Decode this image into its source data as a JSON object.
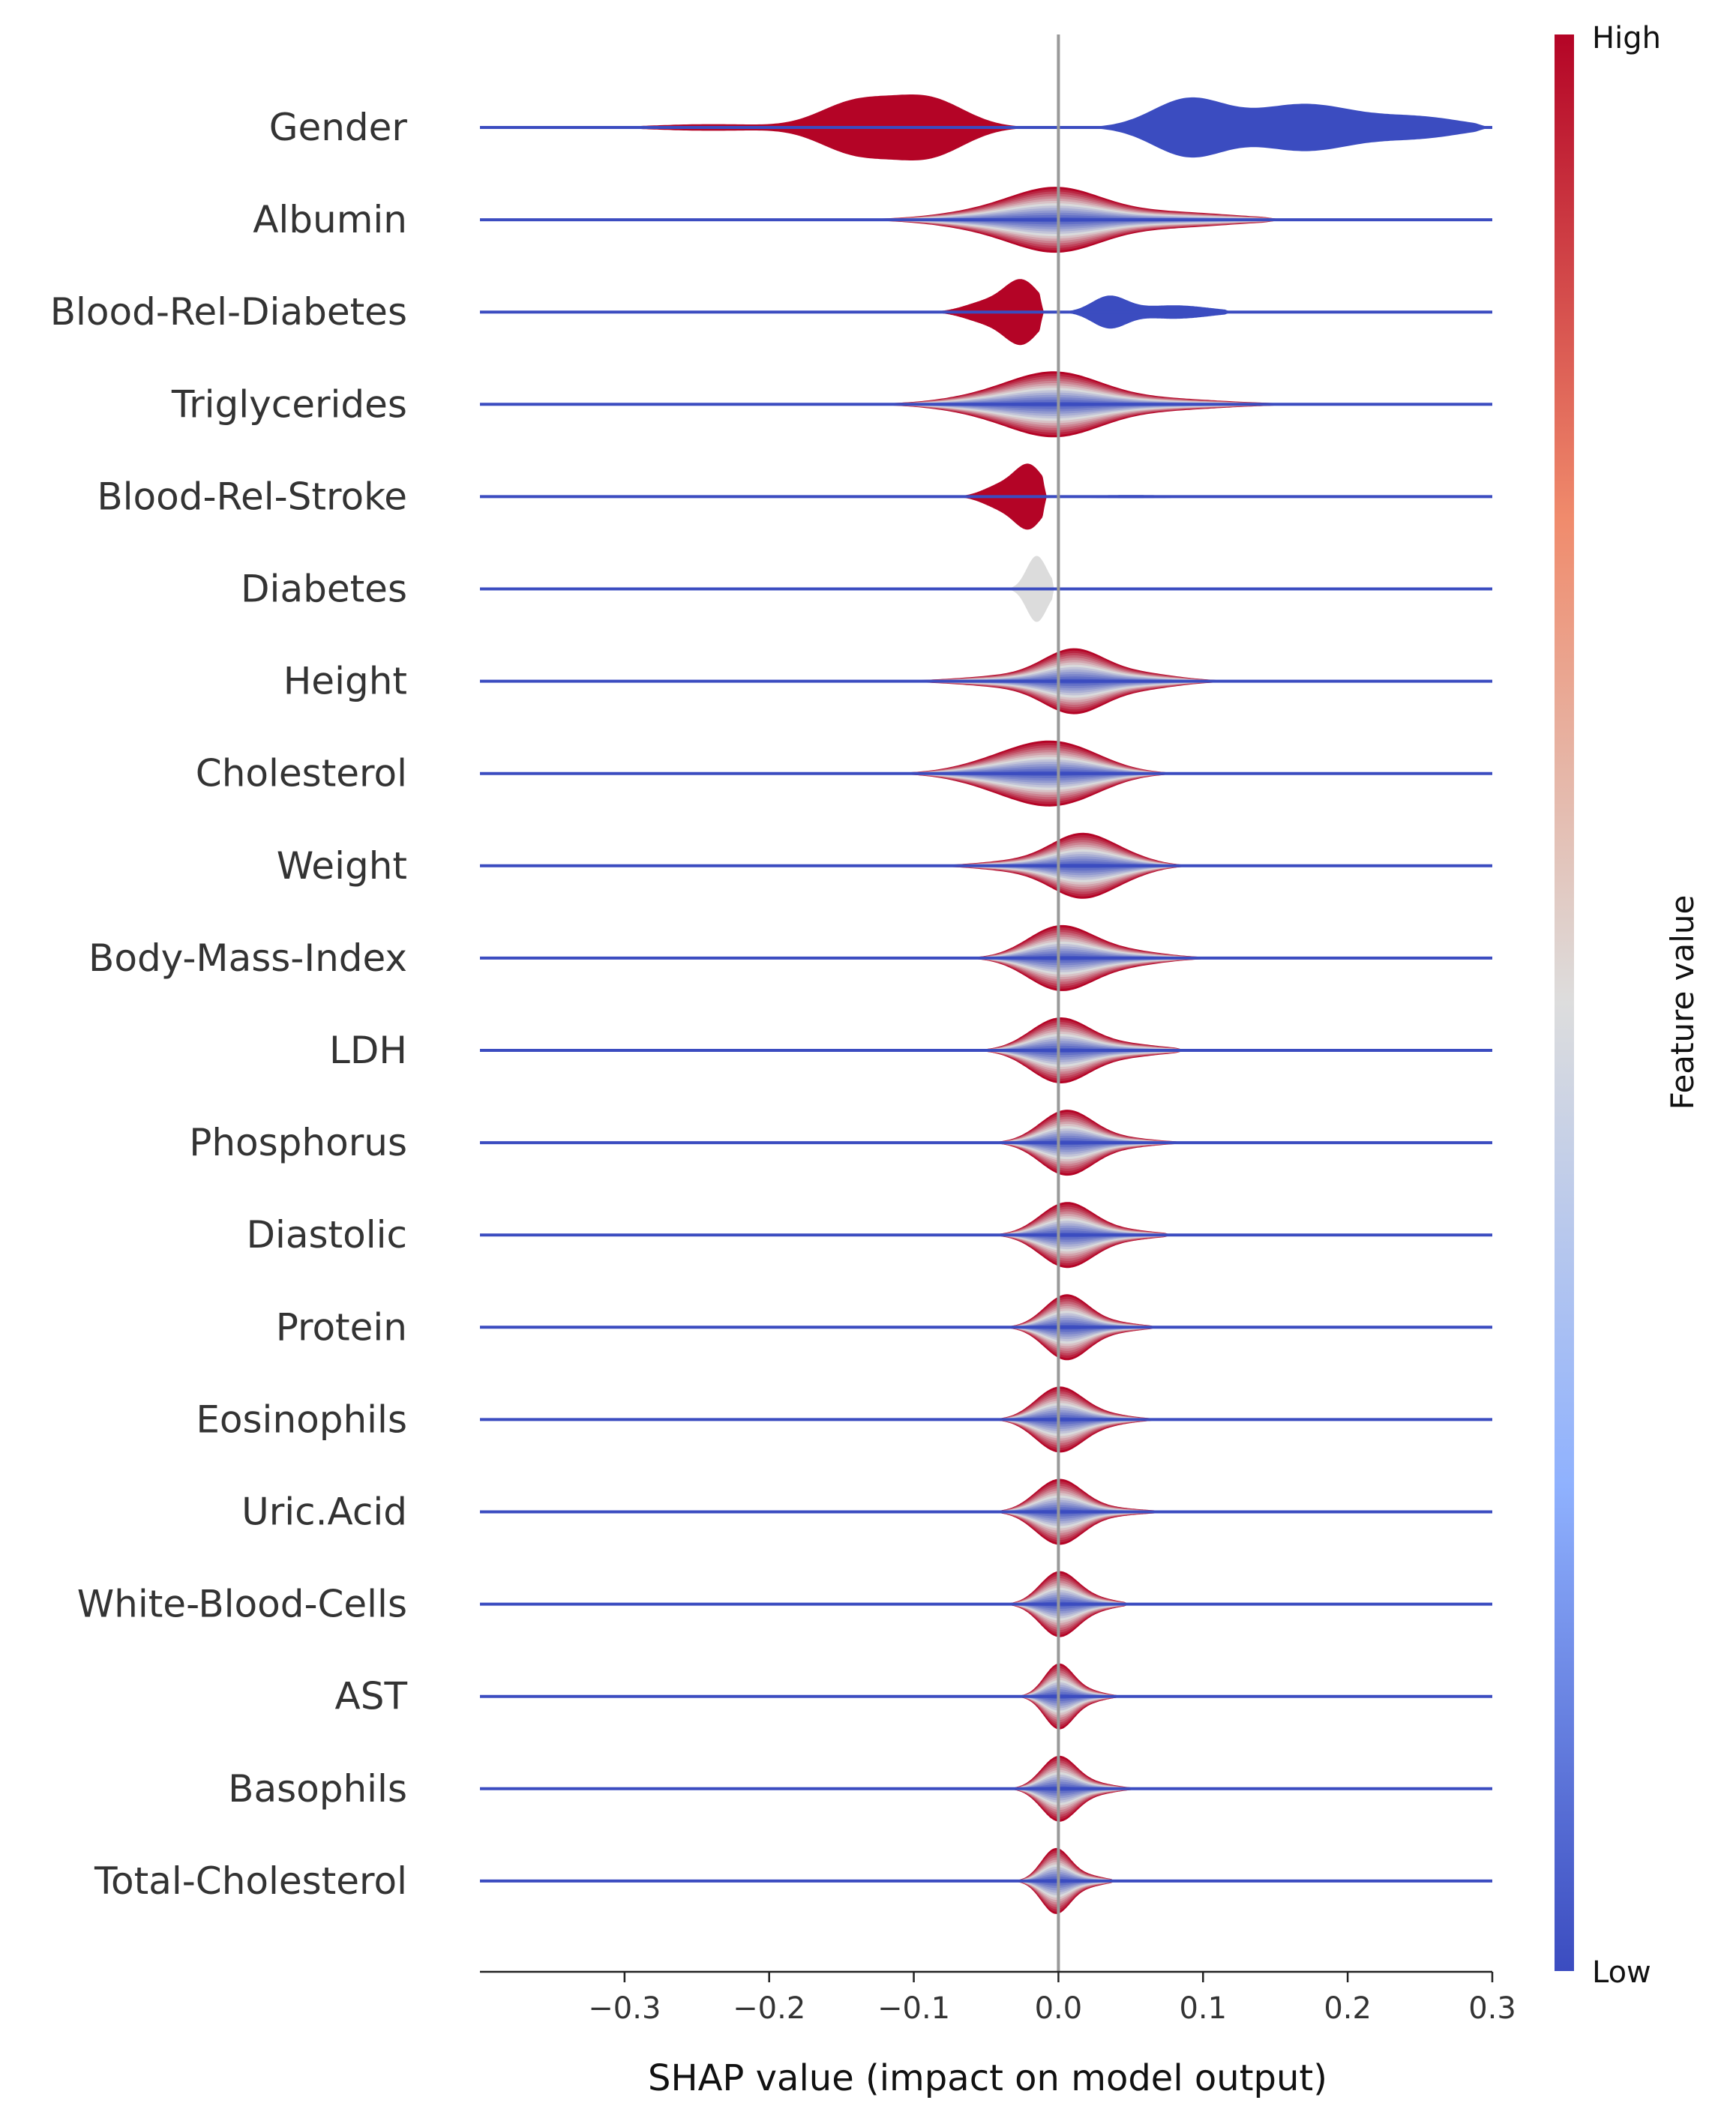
{
  "chart_data": {
    "type": "violin",
    "xlabel": "SHAP value (impact on model output)",
    "ylabel": "",
    "title": "",
    "xlim": [
      -0.4,
      0.3
    ],
    "x_ticks": [
      {
        "value": -0.3,
        "label": "−0.3"
      },
      {
        "value": -0.2,
        "label": "−0.2"
      },
      {
        "value": -0.1,
        "label": "−0.1"
      },
      {
        "value": 0.0,
        "label": "0.0"
      },
      {
        "value": 0.1,
        "label": "0.1"
      },
      {
        "value": 0.2,
        "label": "0.2"
      },
      {
        "value": 0.3,
        "label": "0.3"
      }
    ],
    "colorbar": {
      "label": "Feature value",
      "high_label": "High",
      "low_label": "Low",
      "high_color": "#b40426",
      "mid_color": "#dddddd",
      "low_color": "#3b4cc0"
    },
    "features": [
      {
        "name": "Gender",
        "style": "split",
        "left": {
          "color": "#b40426",
          "peaks": [
            [
              -0.14,
              0.025,
              0.75
            ],
            [
              -0.09,
              0.025,
              0.85
            ],
            [
              -0.24,
              0.04,
              0.1
            ]
          ],
          "min": -0.3,
          "max": -0.002
        },
        "right": {
          "color": "#3b4cc0",
          "peaks": [
            [
              0.09,
              0.025,
              0.85
            ],
            [
              0.17,
              0.035,
              0.7
            ],
            [
              0.25,
              0.03,
              0.3
            ]
          ],
          "min": 0.003,
          "max": 0.3
        }
      },
      {
        "name": "Albumin",
        "style": "gradient",
        "center": 0.025,
        "peaks": [
          [
            0.0,
            0.03,
            0.9
          ],
          [
            -0.04,
            0.04,
            0.35
          ],
          [
            0.07,
            0.05,
            0.3
          ]
        ],
        "min": -0.28,
        "max": 0.16,
        "top": "pos",
        "bottom": "neg"
      },
      {
        "name": "Blood-Rel-Diabetes",
        "style": "split",
        "left": {
          "color": "#b40426",
          "peaks": [
            [
              -0.025,
              0.012,
              0.9
            ],
            [
              -0.05,
              0.015,
              0.3
            ]
          ],
          "min": -0.085,
          "max": -0.01
        },
        "right": {
          "color": "#3b4cc0",
          "peaks": [
            [
              0.035,
              0.012,
              0.45
            ],
            [
              0.08,
              0.025,
              0.2
            ]
          ],
          "min": 0.002,
          "max": 0.12
        }
      },
      {
        "name": "Triglycerides",
        "style": "gradient",
        "center": -0.03,
        "peaks": [
          [
            0.0,
            0.03,
            0.85
          ],
          [
            -0.03,
            0.04,
            0.45
          ],
          [
            0.06,
            0.05,
            0.25
          ]
        ],
        "min": -0.16,
        "max": 0.18,
        "top": "pos",
        "bottom": "pos"
      },
      {
        "name": "Blood-Rel-Stroke",
        "style": "split",
        "left": {
          "color": "#b40426",
          "peaks": [
            [
              -0.02,
              0.01,
              0.95
            ],
            [
              -0.04,
              0.012,
              0.35
            ]
          ],
          "min": -0.08,
          "max": -0.008
        },
        "right": {
          "color": "#3b4cc0",
          "peaks": [
            [
              0.05,
              0.04,
              0.05
            ]
          ],
          "min": 0.002,
          "max": 0.19
        }
      },
      {
        "name": "Diabetes",
        "style": "single",
        "color": "#dcdcdc",
        "peaks": [
          [
            -0.015,
            0.007,
            0.9
          ]
        ],
        "min": -0.035,
        "max": -0.003
      },
      {
        "name": "Height",
        "style": "gradient",
        "center": 0.02,
        "peaks": [
          [
            0.01,
            0.02,
            0.9
          ],
          [
            -0.02,
            0.04,
            0.25
          ],
          [
            0.05,
            0.03,
            0.3
          ]
        ],
        "min": -0.2,
        "max": 0.17,
        "top": "pos",
        "bottom": "neg"
      },
      {
        "name": "Cholesterol",
        "style": "gradient",
        "center": 0.0,
        "peaks": [
          [
            0.0,
            0.03,
            0.85
          ],
          [
            -0.04,
            0.03,
            0.3
          ]
        ],
        "min": -0.14,
        "max": 0.28,
        "top": "neg",
        "bottom": "neg"
      },
      {
        "name": "Weight",
        "style": "gradient",
        "center": 0.025,
        "peaks": [
          [
            0.015,
            0.02,
            0.9
          ],
          [
            -0.02,
            0.03,
            0.2
          ],
          [
            0.045,
            0.02,
            0.3
          ]
        ],
        "min": -0.16,
        "max": 0.11,
        "top": "pos",
        "bottom": "neg"
      },
      {
        "name": "Body-Mass-Index",
        "style": "gradient",
        "center": -0.005,
        "peaks": [
          [
            0.0,
            0.022,
            0.9
          ],
          [
            0.04,
            0.03,
            0.25
          ]
        ],
        "min": -0.14,
        "max": 0.14,
        "top": "pos",
        "bottom": "pos"
      },
      {
        "name": "LDH",
        "style": "gradient",
        "center": 0.005,
        "peaks": [
          [
            0.0,
            0.02,
            0.85
          ],
          [
            0.04,
            0.03,
            0.2
          ]
        ],
        "min": -0.14,
        "max": 0.09,
        "top": "pos",
        "bottom": "neg"
      },
      {
        "name": "Phosphorus",
        "style": "gradient",
        "center": 0.005,
        "peaks": [
          [
            0.005,
            0.018,
            0.9
          ],
          [
            0.04,
            0.025,
            0.15
          ]
        ],
        "min": -0.12,
        "max": 0.09,
        "top": "pos",
        "bottom": "neg"
      },
      {
        "name": "Diastolic",
        "style": "gradient",
        "center": 0.005,
        "peaks": [
          [
            0.005,
            0.018,
            0.85
          ],
          [
            0.04,
            0.025,
            0.15
          ]
        ],
        "min": -0.09,
        "max": 0.08,
        "top": "pos",
        "bottom": "neg"
      },
      {
        "name": "Protein",
        "style": "gradient",
        "center": 0.005,
        "peaks": [
          [
            0.005,
            0.015,
            0.9
          ],
          [
            0.035,
            0.02,
            0.15
          ]
        ],
        "min": -0.09,
        "max": 0.07,
        "top": "pos",
        "bottom": "neg"
      },
      {
        "name": "Eosinophils",
        "style": "gradient",
        "center": 0.0,
        "peaks": [
          [
            0.0,
            0.016,
            0.85
          ],
          [
            0.03,
            0.02,
            0.15
          ]
        ],
        "min": -0.08,
        "max": 0.07,
        "top": "pos",
        "bottom": "neg"
      },
      {
        "name": "Uric.Acid",
        "style": "gradient",
        "center": 0.0,
        "peaks": [
          [
            0.0,
            0.016,
            0.85
          ],
          [
            0.03,
            0.025,
            0.12
          ]
        ],
        "min": -0.07,
        "max": 0.09,
        "top": "pos",
        "bottom": "neg"
      },
      {
        "name": "White-Blood-Cells",
        "style": "gradient",
        "center": 0.0,
        "peaks": [
          [
            0.0,
            0.013,
            0.85
          ],
          [
            0.025,
            0.015,
            0.15
          ]
        ],
        "min": -0.06,
        "max": 0.05,
        "top": "pos",
        "bottom": "neg"
      },
      {
        "name": "AST",
        "style": "gradient",
        "center": 0.0,
        "peaks": [
          [
            0.0,
            0.01,
            0.85
          ],
          [
            0.02,
            0.012,
            0.15
          ]
        ],
        "min": -0.07,
        "max": 0.05,
        "top": "pos",
        "bottom": "neg"
      },
      {
        "name": "Basophils",
        "style": "gradient",
        "center": 0.0,
        "peaks": [
          [
            0.0,
            0.012,
            0.9
          ],
          [
            0.025,
            0.015,
            0.15
          ]
        ],
        "min": -0.07,
        "max": 0.06,
        "top": "pos",
        "bottom": "neg"
      },
      {
        "name": "Total-Cholesterol",
        "style": "gradient",
        "center": -0.005,
        "peaks": [
          [
            -0.002,
            0.01,
            0.9
          ],
          [
            0.02,
            0.012,
            0.15
          ]
        ],
        "min": -0.05,
        "max": 0.04,
        "top": "pos",
        "bottom": "pos"
      }
    ]
  }
}
